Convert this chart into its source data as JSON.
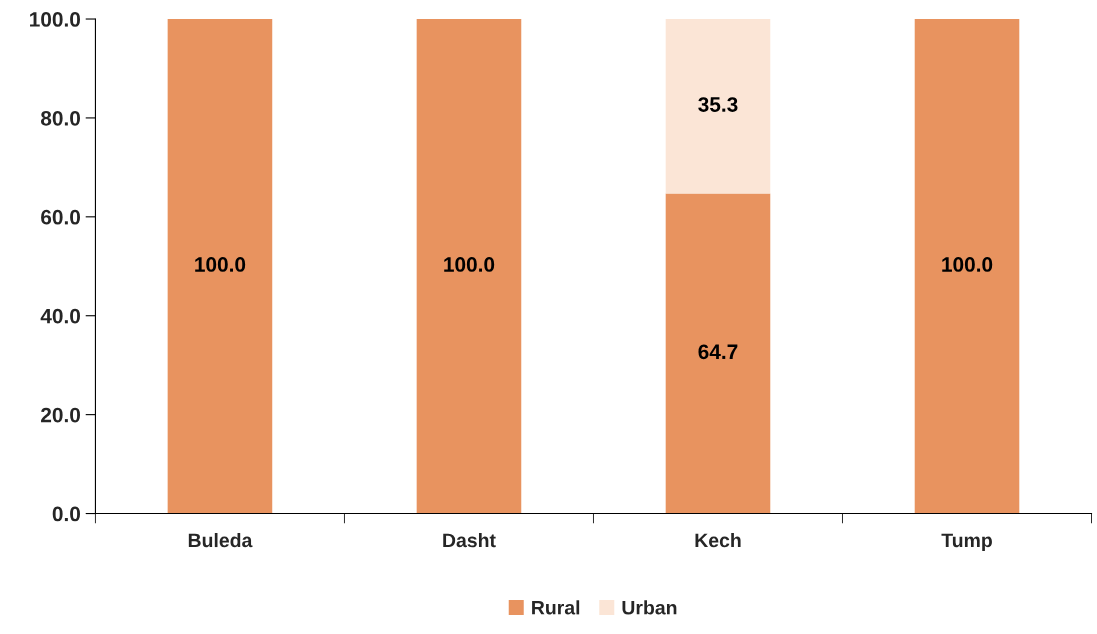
{
  "chart_data": {
    "type": "bar",
    "stacked": true,
    "categories": [
      "Buleda",
      "Dasht",
      "Kech",
      "Tump"
    ],
    "series": [
      {
        "name": "Rural",
        "color": "#e8935f",
        "values": [
          100.0,
          100.0,
          64.7,
          100.0
        ],
        "value_labels": [
          "100.0",
          "100.0",
          "64.7",
          "100.0"
        ]
      },
      {
        "name": "Urban",
        "color": "#fbe5d6",
        "values": [
          0,
          0,
          35.3,
          0
        ],
        "value_labels": [
          null,
          null,
          "35.3",
          null
        ]
      }
    ],
    "ylim": [
      0,
      100
    ],
    "yticks": [
      {
        "value": 0,
        "label": "0.0"
      },
      {
        "value": 20,
        "label": "20.0"
      },
      {
        "value": 40,
        "label": "40.0"
      },
      {
        "value": 60,
        "label": "60.0"
      },
      {
        "value": 80,
        "label": "80.0"
      },
      {
        "value": 100,
        "label": "100.0"
      }
    ],
    "grid": false,
    "legend": "bottom"
  }
}
